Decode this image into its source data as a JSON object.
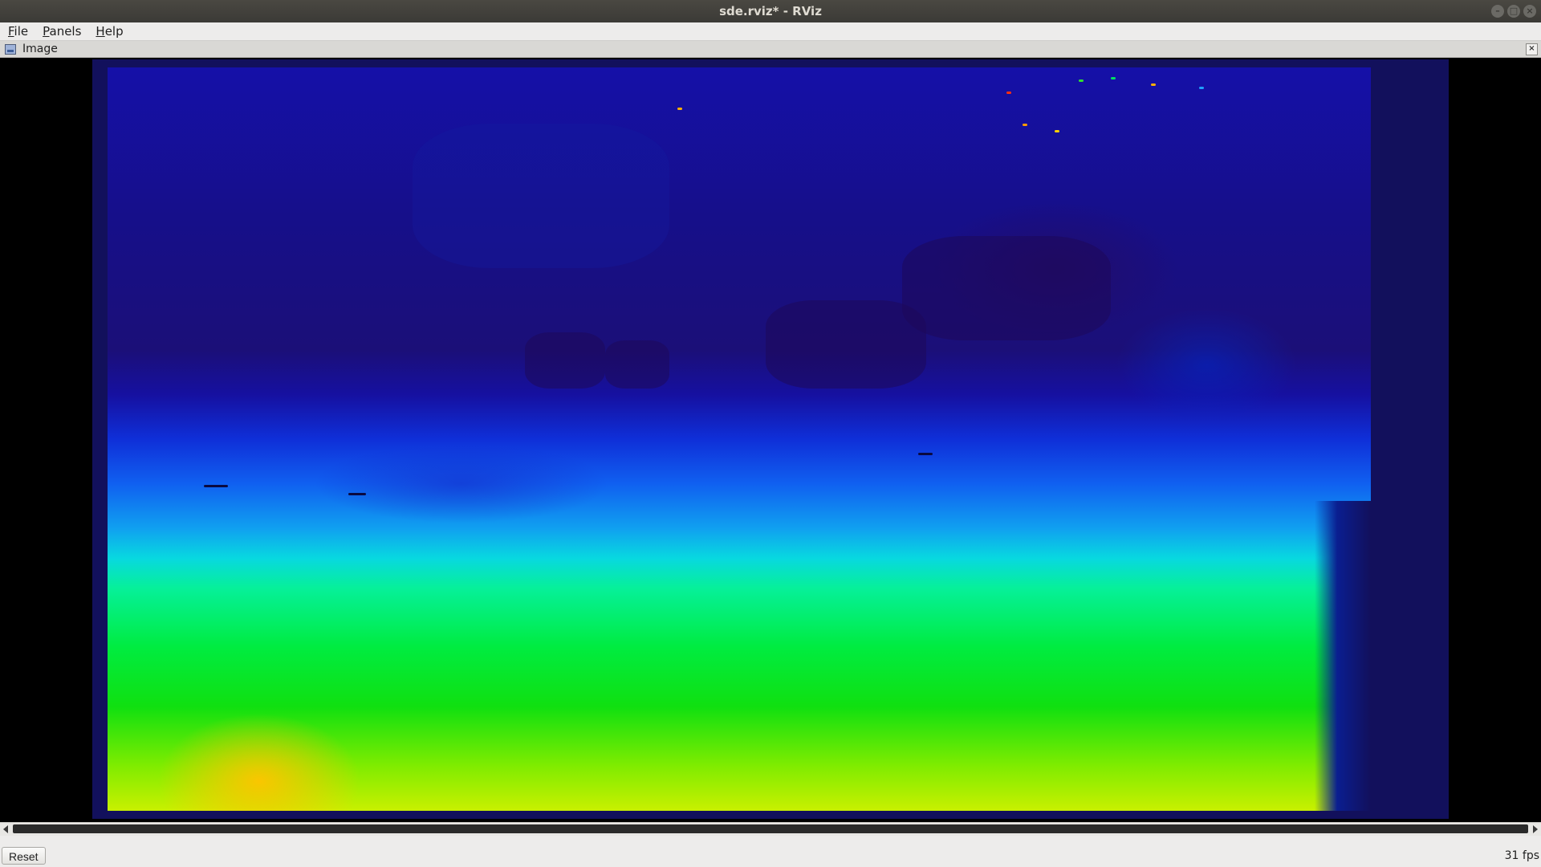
{
  "window": {
    "title": "sde.rviz* - RViz",
    "controls": [
      "minimize-icon",
      "maximize-icon",
      "close-icon"
    ]
  },
  "menu": {
    "items": [
      {
        "label_u": "F",
        "label_rest": "ile"
      },
      {
        "label_u": "P",
        "label_rest": "anels"
      },
      {
        "label_u": "H",
        "label_rest": "elp"
      }
    ]
  },
  "panel": {
    "title": "Image",
    "icon": "image-panel-icon",
    "close_glyph": "×"
  },
  "viewport": {
    "content": "depth-colormap-image",
    "colors": {
      "frame": "#12105c",
      "far": "#1610a0",
      "mid": "#10a0f0",
      "near": "#00ec40",
      "nearest": "#ffc400"
    }
  },
  "statusbar": {
    "reset_label": "Reset",
    "fps_text": "31 fps"
  }
}
